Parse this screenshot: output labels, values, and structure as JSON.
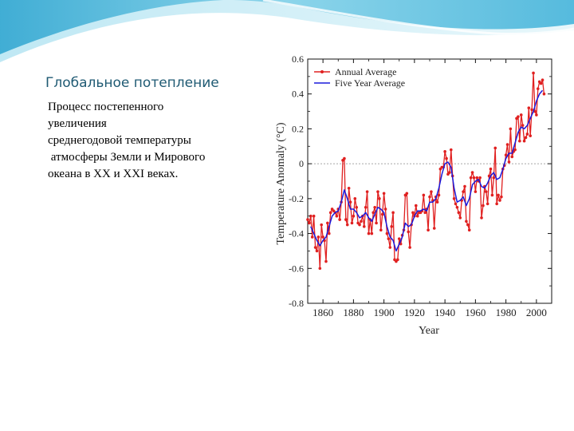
{
  "slide": {
    "title": "Глобальное потепление",
    "body_lines": [
      "Процесс постепенного",
      "увеличения",
      "среднегодовой температуры",
      " атмосферы Земли и Мирового",
      "океана в XX и XXI веках."
    ]
  },
  "colors": {
    "title": "#1f5a73",
    "annual": "#e02020",
    "five_year": "#1a1adc",
    "banner": "#6cc6e0"
  },
  "chart_data": {
    "type": "line",
    "title": "",
    "xlabel": "Year",
    "ylabel": "Temperature Anomaly (°C)",
    "xlim": [
      1850,
      2010
    ],
    "ylim": [
      -0.8,
      0.6
    ],
    "xticks": [
      "1860",
      "1880",
      "1900",
      "1920",
      "1940",
      "1960",
      "1980",
      "2000"
    ],
    "yticks": [
      "0.6",
      "0.4",
      "0.2",
      "0",
      "-0.2",
      "-0.4",
      "-0.6",
      "-0.8"
    ],
    "legend_position": "top-left",
    "zero_line": true,
    "series": [
      {
        "name": "Annual Average",
        "color": "#e02020",
        "x": [
          1850,
          1851,
          1852,
          1853,
          1854,
          1855,
          1856,
          1857,
          1858,
          1859,
          1860,
          1861,
          1862,
          1863,
          1864,
          1865,
          1866,
          1867,
          1868,
          1869,
          1870,
          1871,
          1872,
          1873,
          1874,
          1875,
          1876,
          1877,
          1878,
          1879,
          1880,
          1881,
          1882,
          1883,
          1884,
          1885,
          1886,
          1887,
          1888,
          1889,
          1890,
          1891,
          1892,
          1893,
          1894,
          1895,
          1896,
          1897,
          1898,
          1899,
          1900,
          1901,
          1902,
          1903,
          1904,
          1905,
          1906,
          1907,
          1908,
          1909,
          1910,
          1911,
          1912,
          1913,
          1914,
          1915,
          1916,
          1917,
          1918,
          1919,
          1920,
          1921,
          1922,
          1923,
          1924,
          1925,
          1926,
          1927,
          1928,
          1929,
          1930,
          1931,
          1932,
          1933,
          1934,
          1935,
          1936,
          1937,
          1938,
          1939,
          1940,
          1941,
          1942,
          1943,
          1944,
          1945,
          1946,
          1947,
          1948,
          1949,
          1950,
          1951,
          1952,
          1953,
          1954,
          1955,
          1956,
          1957,
          1958,
          1959,
          1960,
          1961,
          1962,
          1963,
          1964,
          1965,
          1966,
          1967,
          1968,
          1969,
          1970,
          1971,
          1972,
          1973,
          1974,
          1975,
          1976,
          1977,
          1978,
          1979,
          1980,
          1981,
          1982,
          1983,
          1984,
          1985,
          1986,
          1987,
          1988,
          1989,
          1990,
          1991,
          1992,
          1993,
          1994,
          1995,
          1996,
          1997,
          1998,
          1999,
          2000,
          2001,
          2002,
          2003,
          2004,
          2005
        ],
        "y": [
          -0.32,
          -0.34,
          -0.3,
          -0.42,
          -0.3,
          -0.48,
          -0.5,
          -0.42,
          -0.6,
          -0.35,
          -0.42,
          -0.44,
          -0.56,
          -0.34,
          -0.4,
          -0.28,
          -0.26,
          -0.27,
          -0.28,
          -0.3,
          -0.26,
          -0.32,
          -0.22,
          0.02,
          0.03,
          -0.32,
          -0.35,
          -0.14,
          -0.22,
          -0.34,
          -0.3,
          -0.2,
          -0.25,
          -0.34,
          -0.35,
          -0.33,
          -0.3,
          -0.36,
          -0.25,
          -0.16,
          -0.4,
          -0.32,
          -0.4,
          -0.28,
          -0.25,
          -0.34,
          -0.16,
          -0.2,
          -0.38,
          -0.29,
          -0.17,
          -0.26,
          -0.4,
          -0.43,
          -0.48,
          -0.36,
          -0.28,
          -0.55,
          -0.56,
          -0.55,
          -0.43,
          -0.46,
          -0.41,
          -0.38,
          -0.18,
          -0.17,
          -0.39,
          -0.48,
          -0.35,
          -0.28,
          -0.3,
          -0.24,
          -0.3,
          -0.28,
          -0.28,
          -0.27,
          -0.18,
          -0.28,
          -0.26,
          -0.38,
          -0.19,
          -0.16,
          -0.21,
          -0.37,
          -0.19,
          -0.22,
          -0.18,
          -0.03,
          -0.02,
          -0.02,
          0.07,
          0.03,
          -0.06,
          -0.05,
          0.08,
          -0.07,
          -0.2,
          -0.23,
          -0.25,
          -0.28,
          -0.31,
          -0.21,
          -0.16,
          -0.13,
          -0.33,
          -0.35,
          -0.38,
          -0.08,
          -0.05,
          -0.08,
          -0.16,
          -0.08,
          -0.1,
          -0.08,
          -0.31,
          -0.24,
          -0.13,
          -0.16,
          -0.23,
          -0.07,
          -0.03,
          -0.18,
          -0.08,
          0.09,
          -0.23,
          -0.18,
          -0.21,
          -0.19,
          -0.03,
          -0.01,
          0.05,
          0.11,
          0.01,
          0.2,
          0.04,
          0.07,
          0.08,
          0.26,
          0.27,
          0.13,
          0.28,
          0.22,
          0.13,
          0.15,
          0.17,
          0.32,
          0.16,
          0.31,
          0.52,
          0.3,
          0.28,
          0.43,
          0.47,
          0.46,
          0.48,
          0.4
        ]
      },
      {
        "name": "Five Year Average",
        "color": "#1a1adc",
        "x": [
          1852,
          1854,
          1856,
          1858,
          1860,
          1862,
          1864,
          1866,
          1868,
          1870,
          1872,
          1874,
          1876,
          1878,
          1880,
          1882,
          1884,
          1886,
          1888,
          1890,
          1892,
          1894,
          1896,
          1898,
          1900,
          1902,
          1904,
          1906,
          1908,
          1910,
          1912,
          1914,
          1916,
          1918,
          1920,
          1922,
          1924,
          1926,
          1928,
          1930,
          1932,
          1934,
          1936,
          1938,
          1940,
          1942,
          1944,
          1946,
          1948,
          1950,
          1952,
          1954,
          1956,
          1958,
          1960,
          1962,
          1964,
          1966,
          1968,
          1970,
          1972,
          1974,
          1976,
          1978,
          1980,
          1982,
          1984,
          1986,
          1988,
          1990,
          1992,
          1994,
          1996,
          1998,
          2000,
          2002,
          2004
        ],
        "y": [
          -0.36,
          -0.4,
          -0.44,
          -0.47,
          -0.44,
          -0.42,
          -0.36,
          -0.3,
          -0.28,
          -0.27,
          -0.22,
          -0.15,
          -0.2,
          -0.26,
          -0.26,
          -0.28,
          -0.31,
          -0.3,
          -0.28,
          -0.31,
          -0.33,
          -0.29,
          -0.25,
          -0.26,
          -0.28,
          -0.36,
          -0.42,
          -0.44,
          -0.5,
          -0.46,
          -0.42,
          -0.34,
          -0.36,
          -0.35,
          -0.3,
          -0.27,
          -0.27,
          -0.26,
          -0.27,
          -0.22,
          -0.22,
          -0.2,
          -0.14,
          -0.06,
          0.0,
          0.01,
          -0.02,
          -0.14,
          -0.22,
          -0.21,
          -0.19,
          -0.24,
          -0.2,
          -0.12,
          -0.1,
          -0.09,
          -0.13,
          -0.14,
          -0.11,
          -0.07,
          -0.05,
          -0.09,
          -0.08,
          -0.03,
          0.03,
          0.06,
          0.06,
          0.12,
          0.18,
          0.21,
          0.2,
          0.22,
          0.26,
          0.3,
          0.36,
          0.4,
          0.42
        ]
      }
    ]
  }
}
